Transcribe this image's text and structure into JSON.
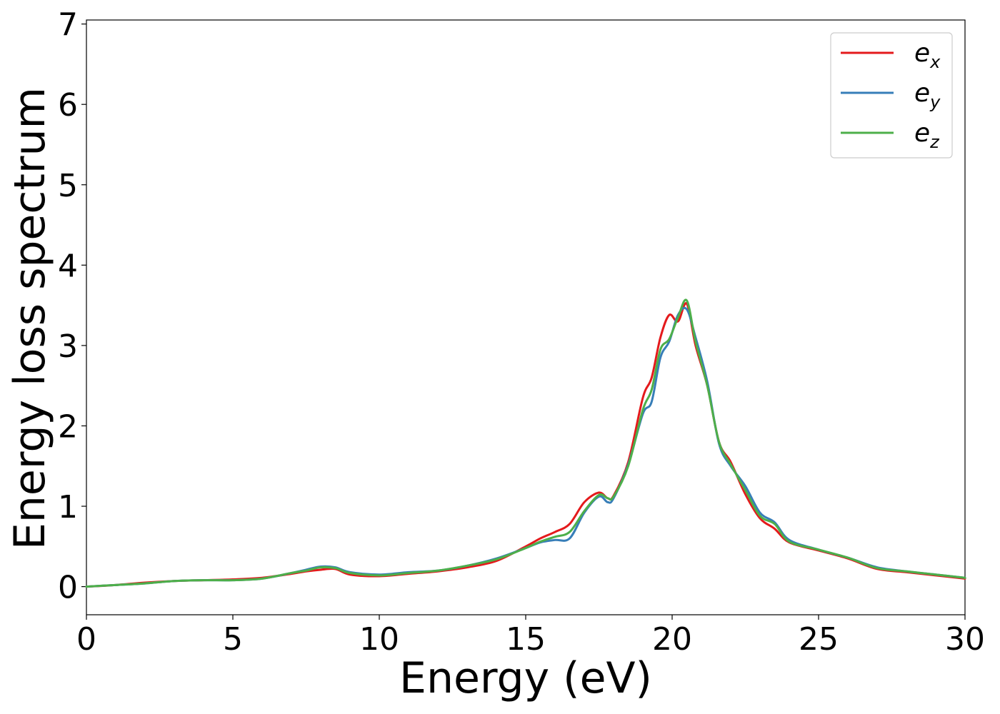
{
  "chart_data": {
    "type": "line",
    "xlabel": "Energy (eV)",
    "ylabel": "Energy loss spectrum",
    "xlim": [
      0,
      30
    ],
    "ylim": [
      -0.35,
      7.05
    ],
    "xticks": [
      0,
      5,
      10,
      15,
      20,
      25,
      30
    ],
    "yticks": [
      0,
      1,
      2,
      3,
      4,
      5,
      6,
      7
    ],
    "grid": false,
    "legend_position": "top-right",
    "x": [
      0,
      1,
      2,
      3,
      4,
      5,
      6,
      7,
      7.5,
      8,
      8.5,
      9,
      10,
      11,
      12,
      13,
      14,
      15,
      15.5,
      16,
      16.5,
      17,
      17.5,
      17.8,
      18,
      18.5,
      19,
      19.3,
      19.6,
      19.9,
      20.2,
      20.5,
      20.8,
      21.2,
      21.6,
      22,
      22.5,
      23,
      23.5,
      24,
      25,
      26,
      27,
      28,
      29,
      30
    ],
    "series": [
      {
        "name": "e",
        "subscript": "x",
        "color": "#e41a1c",
        "values": [
          0.0,
          0.02,
          0.05,
          0.07,
          0.08,
          0.09,
          0.11,
          0.16,
          0.19,
          0.21,
          0.22,
          0.15,
          0.13,
          0.16,
          0.19,
          0.24,
          0.32,
          0.5,
          0.6,
          0.68,
          0.78,
          1.05,
          1.17,
          1.1,
          1.13,
          1.55,
          2.35,
          2.6,
          3.1,
          3.38,
          3.3,
          3.52,
          3.0,
          2.5,
          1.8,
          1.55,
          1.15,
          0.85,
          0.72,
          0.55,
          0.45,
          0.35,
          0.22,
          0.18,
          0.14,
          0.1
        ]
      },
      {
        "name": "e",
        "subscript": "y",
        "color": "#377eb8",
        "values": [
          0.0,
          0.02,
          0.04,
          0.07,
          0.08,
          0.08,
          0.1,
          0.17,
          0.21,
          0.25,
          0.24,
          0.18,
          0.15,
          0.18,
          0.2,
          0.26,
          0.35,
          0.48,
          0.55,
          0.58,
          0.6,
          0.92,
          1.12,
          1.05,
          1.1,
          1.52,
          2.15,
          2.3,
          2.85,
          3.05,
          3.38,
          3.45,
          3.1,
          2.55,
          1.78,
          1.5,
          1.25,
          0.92,
          0.8,
          0.58,
          0.46,
          0.36,
          0.24,
          0.19,
          0.15,
          0.11
        ]
      },
      {
        "name": "e",
        "subscript": "z",
        "color": "#4daf4a",
        "values": [
          0.0,
          0.02,
          0.04,
          0.07,
          0.08,
          0.08,
          0.1,
          0.17,
          0.2,
          0.24,
          0.23,
          0.17,
          0.14,
          0.17,
          0.2,
          0.26,
          0.34,
          0.48,
          0.56,
          0.62,
          0.68,
          0.94,
          1.14,
          1.1,
          1.12,
          1.5,
          2.2,
          2.45,
          2.95,
          3.08,
          3.35,
          3.56,
          3.05,
          2.5,
          1.8,
          1.52,
          1.2,
          0.88,
          0.78,
          0.56,
          0.46,
          0.36,
          0.23,
          0.19,
          0.15,
          0.11
        ]
      }
    ]
  }
}
